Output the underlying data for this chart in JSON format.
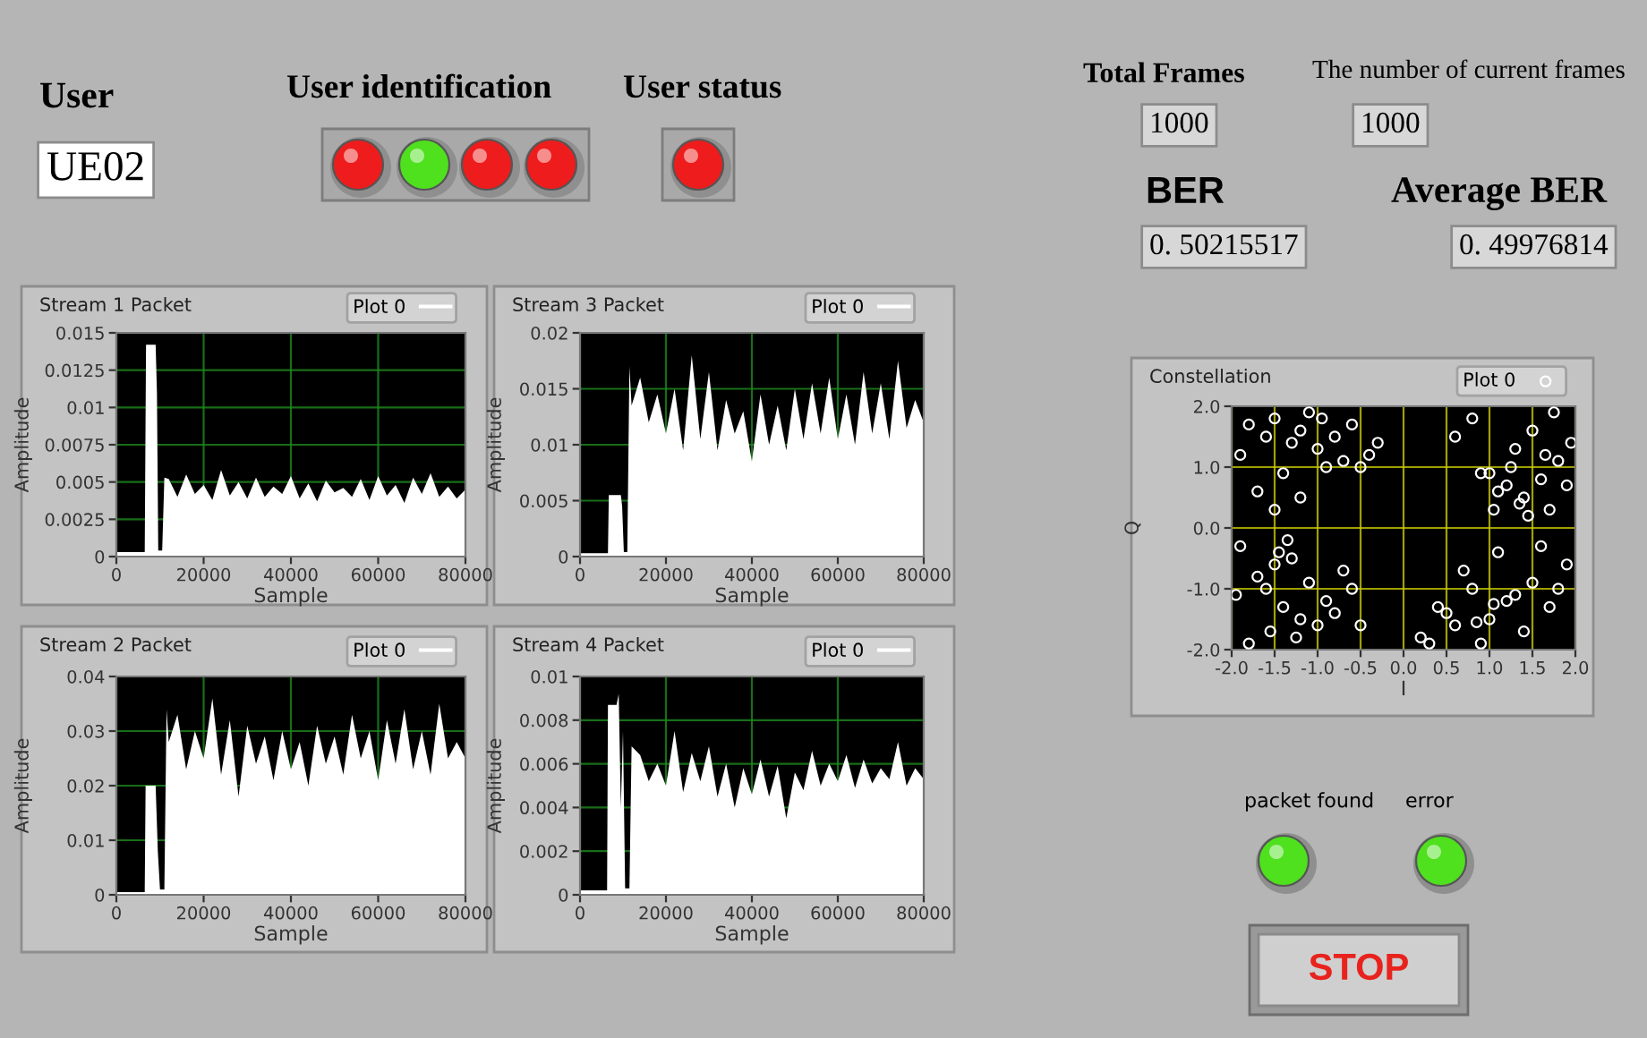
{
  "chart_data": [
    {
      "type": "other",
      "annotations": [
        "User",
        "UE02",
        "User identification",
        "User status",
        "Total Frames",
        "1000",
        "The number of current frames",
        "1000",
        "BER",
        "0. 50215517",
        "Average BER",
        "0. 49976814",
        "packet found",
        "error",
        "STOP"
      ]
    },
    {
      "type": "area",
      "title": "Stream 1 Packet",
      "xlabel": "Sample",
      "ylabel": "Amplitude",
      "xlim": [
        0,
        80000
      ],
      "xticks": [
        0,
        20000,
        40000,
        60000,
        80000
      ],
      "ylim": [
        0,
        0.015
      ],
      "yticks": [
        0,
        0.0025,
        0.005,
        0.0075,
        0.01,
        0.0125,
        0.015
      ],
      "grid": true,
      "legend": "top right",
      "series": [
        {
          "name": "Plot 0",
          "color": "#ffffff",
          "x": [
            0,
            6500,
            6800,
            9000,
            9300,
            9600,
            10500,
            11000,
            12000,
            14000,
            16000,
            18000,
            20000,
            22000,
            24000,
            26000,
            28000,
            30000,
            32000,
            34000,
            36000,
            38000,
            40000,
            42000,
            44000,
            46000,
            48000,
            50000,
            52000,
            54000,
            56000,
            58000,
            60000,
            62000,
            64000,
            66000,
            68000,
            70000,
            72000,
            74000,
            76000,
            78000,
            80000
          ],
          "values": [
            0.0003,
            0.0003,
            0.0142,
            0.0142,
            0.011,
            0.0004,
            0.0004,
            0.0053,
            0.0052,
            0.004,
            0.0055,
            0.0042,
            0.0048,
            0.0038,
            0.0058,
            0.0041,
            0.005,
            0.0039,
            0.0053,
            0.004,
            0.0047,
            0.0042,
            0.0054,
            0.0039,
            0.0049,
            0.0037,
            0.0051,
            0.0043,
            0.0046,
            0.004,
            0.0052,
            0.0038,
            0.0054,
            0.0041,
            0.0048,
            0.0036,
            0.0053,
            0.0042,
            0.0056,
            0.004,
            0.0047,
            0.0039,
            0.0045
          ]
        }
      ]
    },
    {
      "type": "area",
      "title": "Stream 3 Packet",
      "xlabel": "Sample",
      "ylabel": "Amplitude",
      "xlim": [
        0,
        80000
      ],
      "xticks": [
        0,
        20000,
        40000,
        60000,
        80000
      ],
      "ylim": [
        0,
        0.02
      ],
      "yticks": [
        0,
        0.005,
        0.01,
        0.015,
        0.02
      ],
      "grid": true,
      "legend": "top right",
      "series": [
        {
          "name": "Plot 0",
          "color": "#ffffff",
          "x": [
            0,
            6500,
            6700,
            9500,
            9800,
            10200,
            11000,
            11500,
            12000,
            14000,
            16000,
            18000,
            20000,
            22000,
            24000,
            26000,
            28000,
            30000,
            32000,
            34000,
            36000,
            38000,
            40000,
            42000,
            44000,
            46000,
            48000,
            50000,
            52000,
            54000,
            56000,
            58000,
            60000,
            62000,
            64000,
            66000,
            68000,
            70000,
            72000,
            74000,
            76000,
            78000,
            80000
          ],
          "values": [
            0.0003,
            0.0003,
            0.0055,
            0.0055,
            0.0045,
            0.0004,
            0.0004,
            0.017,
            0.0135,
            0.016,
            0.012,
            0.0145,
            0.011,
            0.015,
            0.0095,
            0.018,
            0.0105,
            0.0165,
            0.0095,
            0.014,
            0.011,
            0.013,
            0.0085,
            0.0145,
            0.01,
            0.0135,
            0.0095,
            0.015,
            0.0105,
            0.0155,
            0.011,
            0.016,
            0.0105,
            0.0145,
            0.01,
            0.0165,
            0.011,
            0.0155,
            0.0105,
            0.0175,
            0.0115,
            0.014,
            0.012
          ]
        }
      ]
    },
    {
      "type": "scatter",
      "title": "Constellation",
      "xlabel": "I",
      "ylabel": "Q",
      "xlim": [
        -2,
        2
      ],
      "ylim": [
        -2,
        2
      ],
      "grid": true,
      "legend": "top right",
      "marker": "circle",
      "xticks": [
        {
          "value": -2,
          "label": "-2.0"
        },
        {
          "value": -1.5,
          "label": "-1.5"
        },
        {
          "value": -1,
          "label": "-1.0"
        },
        {
          "value": -0.5,
          "label": "-0.5"
        },
        {
          "value": 0,
          "label": "0.0"
        },
        {
          "value": 0.5,
          "label": "0.5"
        },
        {
          "value": 1,
          "label": "1.0"
        },
        {
          "value": 1.5,
          "label": "1.5"
        },
        {
          "value": 2,
          "label": "2.0"
        }
      ],
      "yticks": [
        {
          "value": -2,
          "label": "-2.0"
        },
        {
          "value": -1,
          "label": "-1.0"
        },
        {
          "value": 0,
          "label": "0.0"
        },
        {
          "value": 1,
          "label": "1.0"
        },
        {
          "value": 2,
          "label": "2.0"
        }
      ],
      "series": [
        {
          "name": "Plot 0",
          "color": "#ffffff",
          "x": [
            -1.8,
            -1.6,
            -1.5,
            -1.3,
            -1.2,
            -1.0,
            -0.8,
            -0.6,
            -0.4,
            -0.9,
            -1.4,
            -1.7,
            -1.9,
            -1.1,
            -0.7,
            -1.5,
            -1.2,
            -0.95,
            -0.3,
            -0.5,
            1.0,
            1.2,
            1.4,
            1.6,
            1.8,
            1.3,
            1.1,
            0.9,
            1.5,
            1.7,
            1.9,
            1.25,
            1.45,
            0.6,
            0.8,
            1.65,
            1.95,
            1.35,
            1.05,
            1.75,
            -1.9,
            -1.7,
            -1.5,
            -1.3,
            -1.1,
            -0.9,
            -0.7,
            -1.6,
            -1.4,
            -1.2,
            -1.8,
            -1.0,
            -0.8,
            -1.35,
            -1.55,
            -0.6,
            -1.95,
            -1.25,
            -1.45,
            -0.5,
            0.2,
            0.4,
            0.6,
            0.8,
            1.0,
            1.2,
            1.4,
            0.7,
            0.9,
            1.1,
            0.5,
            1.3,
            1.5,
            1.7,
            1.9,
            0.3,
            0.85,
            1.05,
            1.6,
            1.8
          ],
          "values": [
            1.7,
            1.5,
            1.8,
            1.4,
            1.6,
            1.3,
            1.5,
            1.7,
            1.2,
            1.0,
            0.9,
            0.6,
            1.2,
            1.9,
            1.1,
            0.3,
            0.5,
            1.8,
            1.4,
            1.0,
            0.9,
            0.7,
            0.5,
            0.8,
            1.1,
            1.3,
            0.6,
            0.9,
            1.6,
            0.3,
            0.7,
            1.0,
            0.2,
            1.5,
            1.8,
            1.2,
            1.4,
            0.4,
            0.3,
            1.9,
            -0.3,
            -0.8,
            -0.6,
            -0.5,
            -0.9,
            -1.2,
            -0.7,
            -1.0,
            -1.3,
            -1.5,
            -1.9,
            -1.6,
            -1.4,
            -0.2,
            -1.7,
            -1.0,
            -1.1,
            -1.8,
            -0.4,
            -1.6,
            -1.8,
            -1.3,
            -1.6,
            -1.0,
            -1.5,
            -1.2,
            -1.7,
            -0.7,
            -1.9,
            -0.4,
            -1.4,
            -1.1,
            -0.9,
            -1.3,
            -0.6,
            -1.9,
            -1.55,
            -1.25,
            -0.3,
            -1.0
          ]
        }
      ]
    },
    {
      "type": "area",
      "title": "Stream 2 Packet",
      "xlabel": "Sample",
      "ylabel": "Amplitude",
      "xlim": [
        0,
        80000
      ],
      "xticks": [
        0,
        20000,
        40000,
        60000,
        80000
      ],
      "ylim": [
        0,
        0.04
      ],
      "yticks": [
        0,
        0.01,
        0.02,
        0.03,
        0.04
      ],
      "grid": true,
      "legend": "top right",
      "series": [
        {
          "name": "Plot 0",
          "color": "#ffffff",
          "x": [
            0,
            6500,
            6700,
            9000,
            9500,
            10000,
            11000,
            11500,
            12000,
            14000,
            16000,
            18000,
            20000,
            22000,
            24000,
            26000,
            28000,
            30000,
            32000,
            34000,
            36000,
            38000,
            40000,
            42000,
            44000,
            46000,
            48000,
            50000,
            52000,
            54000,
            56000,
            58000,
            60000,
            62000,
            64000,
            66000,
            68000,
            70000,
            72000,
            74000,
            76000,
            78000,
            80000
          ],
          "values": [
            0.0005,
            0.0005,
            0.02,
            0.02,
            0.008,
            0.001,
            0.001,
            0.034,
            0.028,
            0.033,
            0.023,
            0.03,
            0.025,
            0.036,
            0.022,
            0.032,
            0.018,
            0.031,
            0.024,
            0.029,
            0.021,
            0.03,
            0.023,
            0.028,
            0.02,
            0.031,
            0.024,
            0.029,
            0.022,
            0.033,
            0.025,
            0.03,
            0.021,
            0.032,
            0.024,
            0.034,
            0.023,
            0.03,
            0.022,
            0.035,
            0.025,
            0.028,
            0.025
          ]
        }
      ]
    },
    {
      "type": "area",
      "title": "Stream 4 Packet",
      "xlabel": "Sample",
      "ylabel": "Amplitude",
      "xlim": [
        0,
        80000
      ],
      "xticks": [
        0,
        20000,
        40000,
        60000,
        80000
      ],
      "ylim": [
        0,
        0.01
      ],
      "yticks": [
        0,
        0.002,
        0.004,
        0.006,
        0.008,
        0.01
      ],
      "grid": true,
      "legend": "top right",
      "series": [
        {
          "name": "Plot 0",
          "color": "#ffffff",
          "x": [
            0,
            6300,
            6500,
            8500,
            9000,
            9500,
            10000,
            10500,
            11500,
            12000,
            14000,
            16000,
            18000,
            20000,
            22000,
            24000,
            26000,
            28000,
            30000,
            32000,
            34000,
            36000,
            38000,
            40000,
            42000,
            44000,
            46000,
            48000,
            50000,
            52000,
            54000,
            56000,
            58000,
            60000,
            62000,
            64000,
            66000,
            68000,
            70000,
            72000,
            74000,
            76000,
            78000,
            80000
          ],
          "values": [
            0.0002,
            0.0002,
            0.0087,
            0.0087,
            0.0092,
            0.004,
            0.0075,
            0.0003,
            0.0003,
            0.0068,
            0.0064,
            0.0052,
            0.006,
            0.005,
            0.0075,
            0.0047,
            0.0065,
            0.0052,
            0.0068,
            0.0045,
            0.006,
            0.004,
            0.0058,
            0.0046,
            0.0062,
            0.0045,
            0.0059,
            0.0035,
            0.0056,
            0.0048,
            0.0066,
            0.005,
            0.006,
            0.0052,
            0.0064,
            0.0049,
            0.0062,
            0.0051,
            0.0058,
            0.0053,
            0.007,
            0.005,
            0.0058,
            0.0053
          ]
        }
      ]
    }
  ]
}
